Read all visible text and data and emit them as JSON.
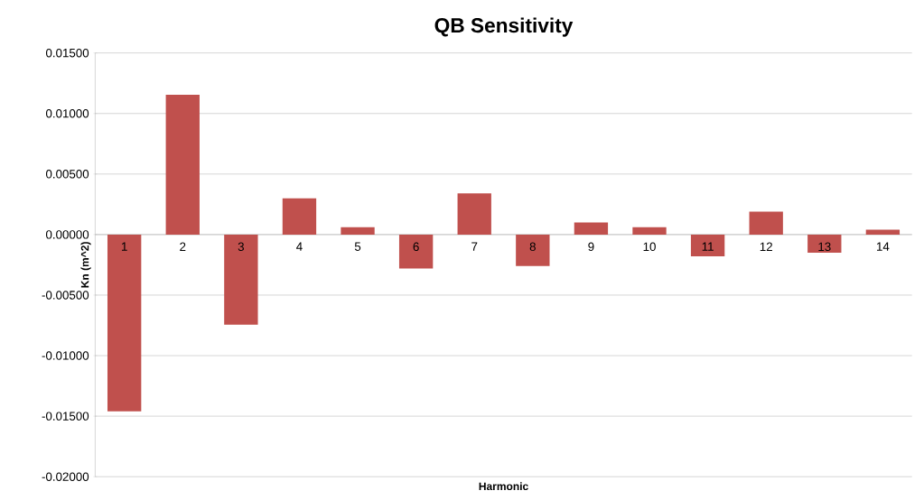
{
  "chart_data": {
    "type": "bar",
    "title": "QB Sensitivity",
    "xlabel": "Harmonic",
    "ylabel": "Kn (m^2)",
    "categories": [
      "1",
      "2",
      "3",
      "4",
      "5",
      "6",
      "7",
      "8",
      "9",
      "10",
      "11",
      "12",
      "13",
      "14"
    ],
    "values": [
      -0.0146,
      0.01155,
      -0.00745,
      0.003,
      0.0006,
      -0.0028,
      0.0034,
      -0.0026,
      0.001,
      0.0006,
      -0.0018,
      0.0019,
      -0.0015,
      0.0004
    ],
    "color": "#c0504d",
    "ylim": [
      -0.02,
      0.015
    ],
    "yticks": [
      {
        "value": -0.02,
        "label": "-0.02000"
      },
      {
        "value": -0.015,
        "label": "-0.01500"
      },
      {
        "value": -0.01,
        "label": "-0.01000"
      },
      {
        "value": -0.005,
        "label": "-0.00500"
      },
      {
        "value": 0,
        "label": "0.00000"
      },
      {
        "value": 0.005,
        "label": "0.00500"
      },
      {
        "value": 0.01,
        "label": "0.01000"
      },
      {
        "value": 0.015,
        "label": "0.01500"
      }
    ],
    "grid": "y"
  }
}
